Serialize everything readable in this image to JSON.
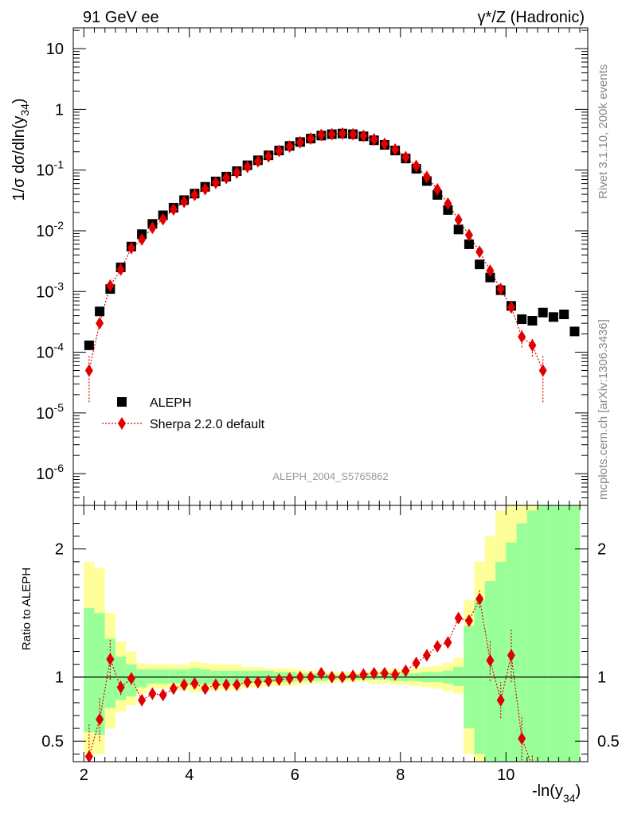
{
  "header": {
    "left": "91 GeV ee",
    "right": "γ*/Z (Hadronic)"
  },
  "side_labels": {
    "rivet": "Rivet 3.1.10,  200k events",
    "mcplots": "mcplots.cern.ch [arXiv:1306.3436]"
  },
  "watermark": "ALEPH_2004_S5765862",
  "axes": {
    "x_label_main": "-ln(y",
    "x_label_sub": "34",
    "x_label_end": ")",
    "y_label_main": "1/σ  dσ/dln(y",
    "y_label_sub": "34",
    "y_label_end": ")",
    "ratio_label": "Ratio to ALEPH",
    "x_range": [
      1.8,
      11.55
    ],
    "y_range_log": [
      3e-07,
      22
    ],
    "ratio_range": [
      0.34,
      2.34
    ],
    "x_ticks": [
      "2",
      "4",
      "6",
      "8",
      "10"
    ],
    "y_ticks": [
      {
        "mant": "10",
        "exp": "-6"
      },
      {
        "mant": "10",
        "exp": "-5"
      },
      {
        "mant": "10",
        "exp": "-4"
      },
      {
        "mant": "10",
        "exp": "-3"
      },
      {
        "mant": "10",
        "exp": "-2"
      },
      {
        "mant": "10",
        "exp": "-1"
      },
      {
        "mant": "1",
        "exp": ""
      },
      {
        "mant": "10",
        "exp": ""
      }
    ],
    "ratio_ticks": [
      "0.5",
      "1",
      "2"
    ]
  },
  "legend": [
    {
      "label": "ALEPH",
      "color": "#000000",
      "marker": "square"
    },
    {
      "label": "Sherpa 2.2.0 default",
      "color": "#e00000",
      "marker": "diamond"
    }
  ],
  "colors": {
    "band_inner": "#99ff99",
    "band_outer": "#ffff99",
    "mc": "#e00000",
    "data": "#000000"
  },
  "chart_data": {
    "type": "scatter",
    "log_y": true,
    "series": [
      {
        "name": "ALEPH",
        "x": [
          2.1,
          2.3,
          2.5,
          2.7,
          2.9,
          3.1,
          3.3,
          3.5,
          3.7,
          3.9,
          4.1,
          4.3,
          4.5,
          4.7,
          4.9,
          5.1,
          5.3,
          5.5,
          5.7,
          5.9,
          6.1,
          6.3,
          6.5,
          6.7,
          6.9,
          7.1,
          7.3,
          7.5,
          7.7,
          7.9,
          8.1,
          8.3,
          8.5,
          8.7,
          8.9,
          9.1,
          9.3,
          9.5,
          9.7,
          9.9,
          10.1,
          10.3,
          10.5,
          10.7,
          10.9,
          11.1,
          11.3
        ],
        "y": [
          0.00013,
          0.00047,
          0.0011,
          0.0025,
          0.0055,
          0.0088,
          0.013,
          0.018,
          0.024,
          0.032,
          0.041,
          0.053,
          0.065,
          0.078,
          0.096,
          0.12,
          0.145,
          0.175,
          0.21,
          0.25,
          0.29,
          0.33,
          0.37,
          0.39,
          0.4,
          0.39,
          0.36,
          0.31,
          0.26,
          0.21,
          0.155,
          0.105,
          0.066,
          0.039,
          0.022,
          0.0105,
          0.006,
          0.0028,
          0.0017,
          0.00105,
          0.00058,
          0.00035,
          0.00033,
          0.00045,
          0.00038,
          0.00042,
          0.00022
        ]
      },
      {
        "name": "Sherpa 2.2.0 default",
        "x": [
          2.1,
          2.3,
          2.5,
          2.7,
          2.9,
          3.1,
          3.3,
          3.5,
          3.7,
          3.9,
          4.1,
          4.3,
          4.5,
          4.7,
          4.9,
          5.1,
          5.3,
          5.5,
          5.7,
          5.9,
          6.1,
          6.3,
          6.5,
          6.7,
          6.9,
          7.1,
          7.3,
          7.5,
          7.7,
          7.9,
          8.1,
          8.3,
          8.5,
          8.7,
          8.9,
          9.1,
          9.3,
          9.5,
          9.7,
          9.9,
          10.1,
          10.3,
          10.5,
          10.7
        ],
        "y": [
          5e-05,
          0.0003,
          0.00125,
          0.0023,
          0.0052,
          0.0072,
          0.0112,
          0.0155,
          0.0225,
          0.03,
          0.039,
          0.0485,
          0.0615,
          0.074,
          0.091,
          0.113,
          0.139,
          0.168,
          0.207,
          0.244,
          0.287,
          0.33,
          0.38,
          0.39,
          0.4,
          0.39,
          0.365,
          0.32,
          0.27,
          0.218,
          0.163,
          0.117,
          0.077,
          0.048,
          0.028,
          0.0152,
          0.0085,
          0.0045,
          0.0022,
          0.0011,
          0.00055,
          0.00018,
          0.00013,
          5e-05
        ],
        "y_low": [
          1.5e-05,
          0.00025,
          0.0011,
          0.0021,
          0.0049,
          0.0069,
          0.0109,
          0.015,
          0.022,
          0.0295,
          0.0385,
          0.048,
          0.061,
          0.0735,
          0.0905,
          0.1125,
          0.1385,
          0.1675,
          0.2065,
          0.2435,
          0.2865,
          0.3295,
          0.3795,
          0.3895,
          0.3995,
          0.3895,
          0.3645,
          0.3195,
          0.2695,
          0.2175,
          0.1625,
          0.1165,
          0.0765,
          0.0475,
          0.0275,
          0.0148,
          0.0081,
          0.0042,
          0.00195,
          0.00093,
          0.00044,
          0.00012,
          8.5e-05,
          1.5e-05
        ],
        "y_high": [
          9e-05,
          0.00035,
          0.0014,
          0.0025,
          0.0055,
          0.0075,
          0.0115,
          0.016,
          0.023,
          0.0305,
          0.0395,
          0.049,
          0.062,
          0.0745,
          0.0915,
          0.1135,
          0.1395,
          0.1685,
          0.2075,
          0.2445,
          0.2875,
          0.3305,
          0.3805,
          0.3905,
          0.4005,
          0.3905,
          0.3655,
          0.3205,
          0.2705,
          0.2185,
          0.1635,
          0.1175,
          0.0775,
          0.0485,
          0.0285,
          0.0156,
          0.0089,
          0.0048,
          0.00245,
          0.00127,
          0.00066,
          0.00024,
          0.000175,
          9e-05
        ],
        "ratio": [
          0.38,
          0.67,
          1.14,
          0.92,
          0.99,
          0.82,
          0.87,
          0.86,
          0.91,
          0.94,
          0.95,
          0.91,
          0.94,
          0.94,
          0.94,
          0.96,
          0.96,
          0.97,
          0.98,
          0.99,
          1.0,
          1.0,
          1.03,
          1.0,
          1.0,
          1.01,
          1.02,
          1.03,
          1.03,
          1.02,
          1.05,
          1.11,
          1.17,
          1.24,
          1.27,
          1.46,
          1.44,
          1.61,
          1.13,
          0.82,
          1.17,
          0.52,
          0.3,
          0.1
        ],
        "ratio_low": [
          0.12,
          0.5,
          0.98,
          0.86,
          0.94,
          0.79,
          0.84,
          0.83,
          0.9,
          0.93,
          0.94,
          0.9,
          0.93,
          0.93,
          0.93,
          0.95,
          0.95,
          0.96,
          0.97,
          0.98,
          0.99,
          0.99,
          1.02,
          0.99,
          0.99,
          1.0,
          1.01,
          1.02,
          1.02,
          1.01,
          1.04,
          1.1,
          1.16,
          1.22,
          1.25,
          1.43,
          1.4,
          1.54,
          0.97,
          0.68,
          0.96,
          0.35,
          0.2,
          0.05
        ],
        "ratio_high": [
          0.64,
          0.84,
          1.3,
          0.98,
          1.04,
          0.85,
          0.9,
          0.89,
          0.92,
          0.95,
          0.96,
          0.92,
          0.95,
          0.95,
          0.95,
          0.97,
          0.97,
          0.98,
          0.99,
          1.0,
          1.01,
          1.01,
          1.04,
          1.01,
          1.01,
          1.02,
          1.03,
          1.04,
          1.04,
          1.03,
          1.06,
          1.12,
          1.18,
          1.26,
          1.29,
          1.49,
          1.48,
          1.68,
          1.29,
          0.96,
          1.38,
          0.7,
          0.4,
          0.15
        ]
      }
    ],
    "ratio_band": {
      "x_edges": [
        2.0,
        2.2,
        2.4,
        2.6,
        2.8,
        3.0,
        3.2,
        3.4,
        3.6,
        3.8,
        4.0,
        4.2,
        4.4,
        4.6,
        4.8,
        5.0,
        5.2,
        5.4,
        5.6,
        5.8,
        6.0,
        6.2,
        6.4,
        6.6,
        6.8,
        7.0,
        7.2,
        7.4,
        7.6,
        7.8,
        8.0,
        8.2,
        8.4,
        8.6,
        8.8,
        9.0,
        9.2,
        9.4,
        9.6,
        9.8,
        10.0,
        10.2,
        10.4,
        10.6,
        10.8,
        11.0,
        11.2,
        11.4
      ],
      "inner_low": [
        0.57,
        0.55,
        0.76,
        0.82,
        0.85,
        0.92,
        0.95,
        0.95,
        0.95,
        0.95,
        0.94,
        0.94,
        0.95,
        0.95,
        0.95,
        0.96,
        0.96,
        0.96,
        0.96,
        0.96,
        0.97,
        0.97,
        0.97,
        0.98,
        0.98,
        0.98,
        0.98,
        0.98,
        0.98,
        0.97,
        0.97,
        0.97,
        0.96,
        0.96,
        0.95,
        0.93,
        0.6,
        0.4,
        0.3,
        0.3,
        0.25,
        0.2,
        0.2,
        0.2,
        0.2,
        0.2,
        0.2
      ],
      "inner_high": [
        1.54,
        1.5,
        1.3,
        1.16,
        1.1,
        1.06,
        1.06,
        1.06,
        1.06,
        1.06,
        1.07,
        1.06,
        1.05,
        1.05,
        1.05,
        1.05,
        1.05,
        1.05,
        1.04,
        1.04,
        1.03,
        1.03,
        1.03,
        1.02,
        1.02,
        1.02,
        1.02,
        1.02,
        1.02,
        1.03,
        1.03,
        1.03,
        1.04,
        1.04,
        1.05,
        1.08,
        1.4,
        1.6,
        1.75,
        1.9,
        2.05,
        2.2,
        2.3,
        2.4,
        2.5,
        2.6,
        2.7
      ],
      "outer_low": [
        0.4,
        0.4,
        0.6,
        0.73,
        0.78,
        0.87,
        0.91,
        0.91,
        0.91,
        0.9,
        0.88,
        0.89,
        0.9,
        0.9,
        0.9,
        0.92,
        0.92,
        0.93,
        0.93,
        0.93,
        0.94,
        0.95,
        0.95,
        0.96,
        0.96,
        0.96,
        0.96,
        0.95,
        0.95,
        0.94,
        0.94,
        0.93,
        0.92,
        0.91,
        0.89,
        0.87,
        0.4,
        0.25,
        0.2,
        0.2,
        0.2,
        0.2,
        0.2,
        0.2,
        0.2,
        0.2,
        0.2
      ],
      "outer_high": [
        1.9,
        1.85,
        1.5,
        1.28,
        1.2,
        1.11,
        1.1,
        1.1,
        1.1,
        1.1,
        1.12,
        1.11,
        1.1,
        1.1,
        1.1,
        1.08,
        1.08,
        1.07,
        1.07,
        1.07,
        1.06,
        1.05,
        1.05,
        1.04,
        1.04,
        1.04,
        1.04,
        1.05,
        1.05,
        1.06,
        1.06,
        1.07,
        1.08,
        1.09,
        1.11,
        1.15,
        1.6,
        1.9,
        2.1,
        2.3,
        2.5,
        2.6,
        2.7,
        2.8,
        2.9,
        3.0,
        3.1
      ]
    }
  }
}
